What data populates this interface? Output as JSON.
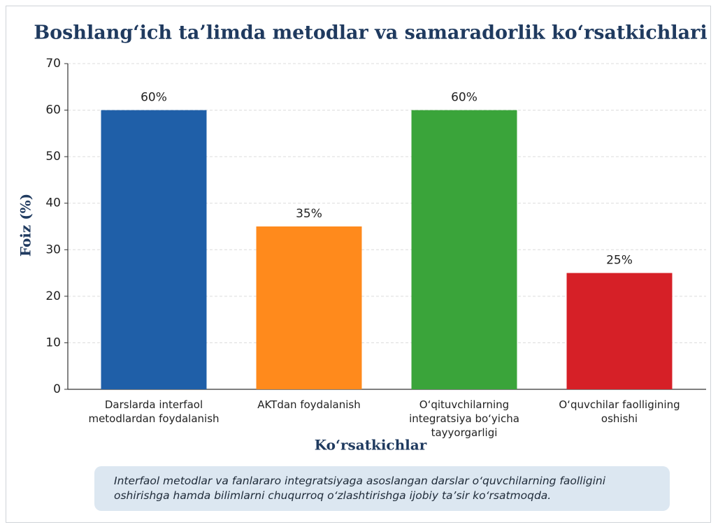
{
  "chart_data": {
    "type": "bar",
    "title": "Boshlang‘ich ta’limda metodlar va samaradorlik ko‘rsatkichlari",
    "ylabel": "Foiz (%)",
    "xlabel": "Ko‘rsatkichlar",
    "categories": [
      "Darslarda interfaol metodlardan foydalanish",
      "AKTdan foydalanish",
      "O‘qituvchilarning integratsiya bo‘yicha tayyorgarligi",
      "O‘quvchilar faolligining oshishi"
    ],
    "values": [
      60,
      35,
      60,
      25
    ],
    "value_labels": [
      "60%",
      "35%",
      "60%",
      "25%"
    ],
    "colors": [
      "#1f5fa8",
      "#ff8a1c",
      "#3aa43a",
      "#d62027"
    ],
    "ylim": [
      0,
      70
    ],
    "yticks": [
      0,
      10,
      20,
      30,
      40,
      50,
      60,
      70
    ],
    "grid": true,
    "note": "Interfaol metodlar va fanlararo integratsiyaga asoslangan darslar o‘quvchilarning faolligini oshirishga hamda bilimlarni chuqurroq o‘zlashtirishga ijobiy ta’sir ko‘rsatmoqda."
  }
}
